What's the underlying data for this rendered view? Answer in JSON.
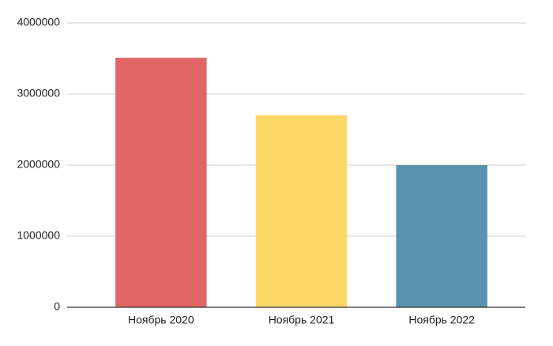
{
  "chart_data": {
    "type": "bar",
    "categories": [
      "Ноябрь 2020",
      "Ноябрь 2021",
      "Ноябрь 2022"
    ],
    "values": [
      3510000,
      2700000,
      2000000
    ],
    "colors": [
      "#e06666",
      "#fdd766",
      "#5a93b0"
    ],
    "ylim": [
      0,
      4000000
    ],
    "yticks": [
      0,
      1000000,
      2000000,
      3000000,
      4000000
    ],
    "grid": true
  }
}
